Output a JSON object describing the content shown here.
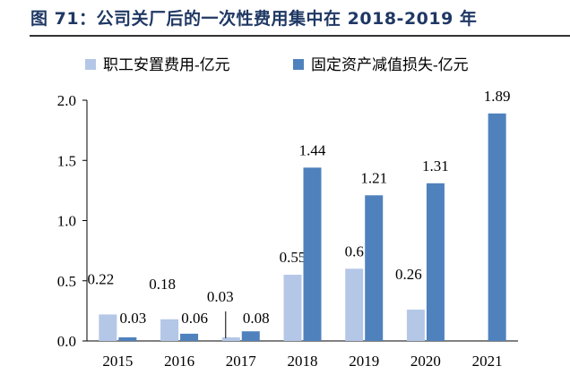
{
  "title": "图 71：公司关厂后的一次性费用集中在 2018-2019 年",
  "chart_data": {
    "type": "bar",
    "title": "",
    "xlabel": "",
    "ylabel": "",
    "ylim": [
      0,
      2.0
    ],
    "yticks": [
      "0.0",
      "0.5",
      "1.0",
      "1.5",
      "2.0"
    ],
    "grid": false,
    "legend_position": "top",
    "categories": [
      "2015",
      "2016",
      "2017",
      "2018",
      "2019",
      "2020",
      "2021"
    ],
    "series": [
      {
        "name": "职工安置费用-亿元",
        "color": "#b4c7e7",
        "values": [
          0.22,
          0.18,
          0.03,
          0.55,
          0.6,
          0.26,
          null
        ],
        "labels": [
          "0.22",
          "0.18",
          "0.03",
          "0.55",
          "0.6",
          "0.26",
          null
        ]
      },
      {
        "name": "固定资产减值损失-亿元",
        "color": "#4f81bd",
        "values": [
          0.03,
          0.06,
          0.08,
          1.44,
          1.21,
          1.31,
          1.89
        ],
        "labels": [
          "0.03",
          "0.06",
          "0.08",
          "1.44",
          "1.21",
          "1.31",
          "1.89"
        ]
      }
    ]
  }
}
